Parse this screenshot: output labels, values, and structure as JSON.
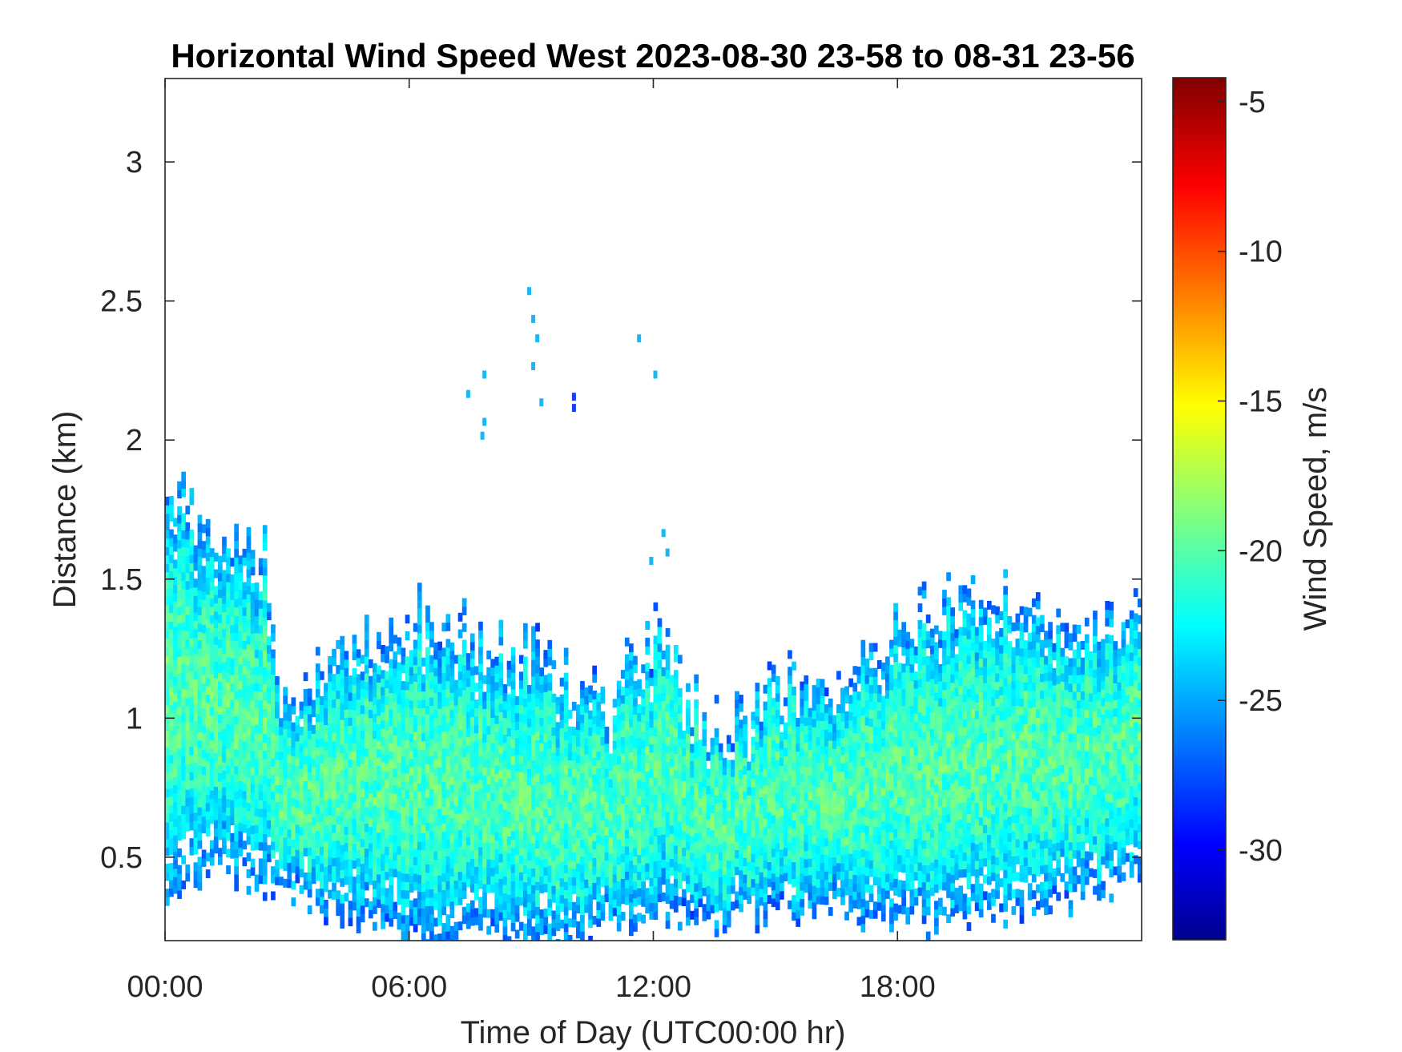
{
  "chart_data": {
    "type": "heatmap",
    "title": "Horizontal Wind Speed West 2023-08-30 23-58 to 08-31 23-56",
    "xlabel": "Time of Day (UTC00:00 hr)",
    "ylabel": "Distance (km)",
    "colorbar_label": "Wind Speed, m/s",
    "colormap": "jet",
    "x_ticks": [
      "00:00",
      "06:00",
      "12:00",
      "18:00"
    ],
    "x_tick_hours": [
      0,
      6,
      12,
      18
    ],
    "xlim_hours": [
      0,
      24
    ],
    "y_ticks": [
      "0.5",
      "1",
      "1.5",
      "2",
      "2.5",
      "3"
    ],
    "y_tick_values": [
      0.5,
      1,
      1.5,
      2,
      2.5,
      3
    ],
    "ylim": [
      0.2,
      3.3
    ],
    "colorbar_ticks": [
      "-5",
      "-10",
      "-15",
      "-20",
      "-25",
      "-30"
    ],
    "colorbar_tick_values": [
      -5,
      -10,
      -15,
      -20,
      -25,
      -30
    ],
    "clim": [
      -33,
      -4.2
    ],
    "data_extent_segments": [
      {
        "hours": 0.0,
        "top_km": 1.8,
        "bottom_km": 0.35
      },
      {
        "hours": 1.2,
        "top_km": 1.7,
        "bottom_km": 0.45
      },
      {
        "hours": 2.4,
        "top_km": 1.6,
        "bottom_km": 0.4
      },
      {
        "hours": 2.7,
        "top_km": 1.1,
        "bottom_km": 0.4
      },
      {
        "hours": 4.0,
        "top_km": 1.2,
        "bottom_km": 0.3
      },
      {
        "hours": 5.5,
        "top_km": 1.3,
        "bottom_km": 0.25
      },
      {
        "hours": 6.5,
        "top_km": 1.35,
        "bottom_km": 0.2
      },
      {
        "hours": 8.0,
        "top_km": 1.25,
        "bottom_km": 0.2
      },
      {
        "hours": 9.5,
        "top_km": 1.2,
        "bottom_km": 0.2
      },
      {
        "hours": 10.8,
        "top_km": 1.05,
        "bottom_km": 0.25
      },
      {
        "hours": 12.0,
        "top_km": 1.3,
        "bottom_km": 0.3
      },
      {
        "hours": 13.5,
        "top_km": 0.95,
        "bottom_km": 0.25
      },
      {
        "hours": 15.0,
        "top_km": 1.1,
        "bottom_km": 0.3
      },
      {
        "hours": 16.5,
        "top_km": 1.15,
        "bottom_km": 0.3
      },
      {
        "hours": 18.5,
        "top_km": 1.4,
        "bottom_km": 0.25
      },
      {
        "hours": 20.5,
        "top_km": 1.45,
        "bottom_km": 0.3
      },
      {
        "hours": 22.5,
        "top_km": 1.3,
        "bottom_km": 0.35
      },
      {
        "hours": 24.0,
        "top_km": 1.35,
        "bottom_km": 0.45
      }
    ],
    "typical_value_core_ms": -20,
    "typical_value_edge_ms": -26
  }
}
